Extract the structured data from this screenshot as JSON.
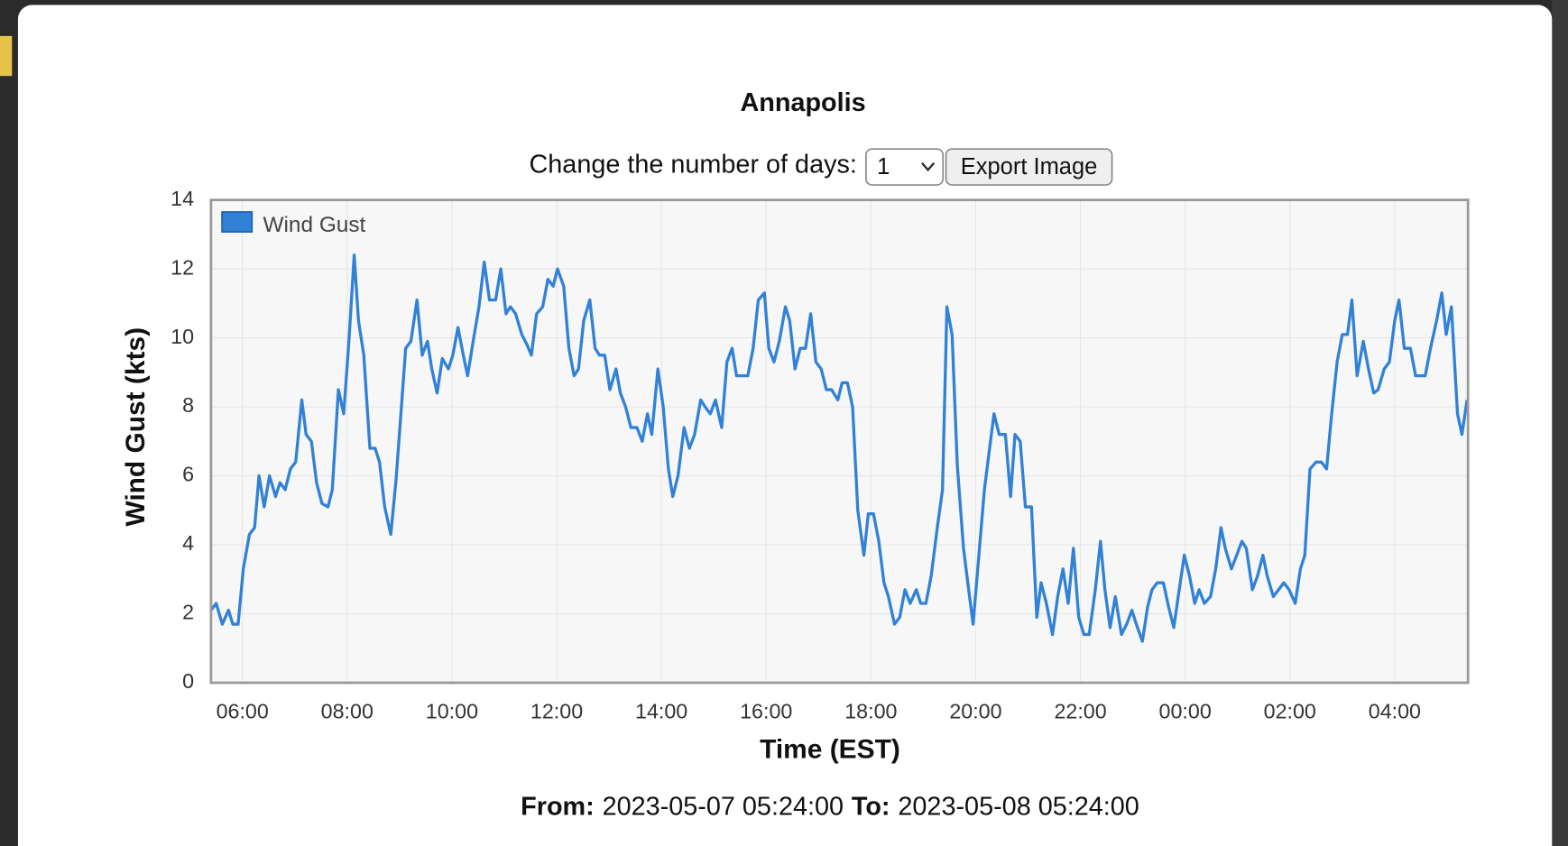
{
  "chart_data": {
    "type": "line",
    "title": "Annapolis",
    "xlabel": "Time (EST)",
    "ylabel": "Wind Gust (kts)",
    "x": [
      "05:24",
      "05:30",
      "05:37",
      "05:44",
      "05:49",
      "05:55",
      "06:01",
      "06:08",
      "06:14",
      "06:19",
      "06:25",
      "06:31",
      "06:38",
      "06:43",
      "06:49",
      "06:55",
      "07:01",
      "07:08",
      "07:13",
      "07:19",
      "07:25",
      "07:31",
      "07:38",
      "07:43",
      "07:50",
      "07:56",
      "08:02",
      "08:08",
      "08:13",
      "08:19",
      "08:26",
      "08:32",
      "08:37",
      "08:43",
      "08:50",
      "08:56",
      "09:01",
      "09:07",
      "09:13",
      "09:20",
      "09:26",
      "09:32",
      "09:37",
      "09:43",
      "09:49",
      "09:56",
      "10:01",
      "10:07",
      "10:13",
      "10:18",
      "10:25",
      "10:31",
      "10:37",
      "10:43",
      "10:50",
      "10:56",
      "11:02",
      "11:07",
      "11:13",
      "11:20",
      "11:26",
      "11:31",
      "11:37",
      "11:44",
      "11:50",
      "11:56",
      "12:01",
      "12:08",
      "12:14",
      "12:20",
      "12:25",
      "12:31",
      "12:38",
      "12:44",
      "12:49",
      "12:55",
      "13:01",
      "13:08",
      "13:13",
      "13:19",
      "13:25",
      "13:32",
      "13:38",
      "13:44",
      "13:49",
      "13:56",
      "14:02",
      "14:08",
      "14:13",
      "14:19",
      "14:26",
      "14:32",
      "14:38",
      "14:45",
      "14:50",
      "14:56",
      "15:02",
      "15:09",
      "15:15",
      "15:21",
      "15:26",
      "15:33",
      "15:39",
      "15:45",
      "15:51",
      "15:58",
      "16:03",
      "16:09",
      "16:15",
      "16:22",
      "16:27",
      "16:33",
      "16:39",
      "16:45",
      "16:51",
      "16:57",
      "17:03",
      "17:09",
      "17:15",
      "17:22",
      "17:27",
      "17:33",
      "17:39",
      "17:45",
      "17:52",
      "17:57",
      "18:03",
      "18:09",
      "18:15",
      "18:20",
      "18:27",
      "18:33",
      "18:39",
      "18:45",
      "18:52",
      "18:57",
      "19:03",
      "19:09",
      "19:16",
      "19:22",
      "19:27",
      "19:33",
      "19:39",
      "19:46",
      "19:51",
      "19:57",
      "20:03",
      "20:10",
      "20:16",
      "20:21",
      "20:27",
      "20:34",
      "20:40",
      "20:45",
      "20:51",
      "20:57",
      "21:04",
      "21:10",
      "21:15",
      "21:21",
      "21:28",
      "21:34",
      "21:40",
      "21:46",
      "21:52",
      "21:58",
      "22:04",
      "22:10",
      "22:17",
      "22:23",
      "22:28",
      "22:34",
      "22:40",
      "22:47",
      "22:53",
      "22:59",
      "23:04",
      "23:11",
      "23:17",
      "23:22",
      "23:28",
      "23:35",
      "23:41",
      "23:47",
      "23:52",
      "23:59",
      "00:05",
      "00:11",
      "00:16",
      "00:22",
      "00:29",
      "00:35",
      "00:41",
      "00:46",
      "00:53",
      "00:59",
      "01:05",
      "01:10",
      "01:17",
      "01:23",
      "01:29",
      "01:34",
      "01:41",
      "01:47",
      "01:53",
      "01:59",
      "02:06",
      "02:12",
      "02:17",
      "02:23",
      "02:30",
      "02:36",
      "02:42",
      "02:47",
      "02:54",
      "03:00",
      "03:06",
      "03:11",
      "03:17",
      "03:24",
      "03:30",
      "03:36",
      "03:41",
      "03:48",
      "03:54",
      "04:00",
      "04:05",
      "04:11",
      "04:18",
      "04:24",
      "04:30",
      "04:35",
      "04:41",
      "04:48",
      "04:54",
      "04:59",
      "05:05",
      "05:12",
      "05:17",
      "05:23"
    ],
    "series": [
      {
        "name": "Wind Gust",
        "color": "#3182d6",
        "values": [
          2.1,
          2.3,
          1.7,
          2.1,
          1.7,
          1.7,
          3.3,
          4.3,
          4.5,
          6.0,
          5.1,
          6.0,
          5.4,
          5.8,
          5.6,
          6.2,
          6.4,
          8.2,
          7.2,
          7.0,
          5.8,
          5.2,
          5.1,
          5.6,
          8.5,
          7.8,
          9.9,
          12.4,
          10.5,
          9.5,
          6.8,
          6.8,
          6.4,
          5.1,
          4.3,
          5.9,
          7.6,
          9.7,
          9.9,
          11.1,
          9.5,
          9.9,
          9.1,
          8.4,
          9.4,
          9.1,
          9.5,
          10.3,
          9.5,
          8.9,
          10.0,
          10.9,
          12.2,
          11.1,
          11.1,
          12.0,
          10.7,
          10.9,
          10.7,
          10.1,
          9.8,
          9.5,
          10.7,
          10.9,
          11.7,
          11.5,
          12.0,
          11.5,
          9.7,
          8.9,
          9.1,
          10.5,
          11.1,
          9.7,
          9.5,
          9.5,
          8.5,
          9.1,
          8.4,
          8.0,
          7.4,
          7.4,
          7.0,
          7.8,
          7.2,
          9.1,
          8.0,
          6.2,
          5.4,
          6.0,
          7.4,
          6.8,
          7.2,
          8.2,
          8.0,
          7.8,
          8.2,
          7.4,
          9.3,
          9.7,
          8.9,
          8.9,
          8.9,
          9.7,
          11.1,
          11.3,
          9.7,
          9.3,
          9.9,
          10.9,
          10.5,
          9.1,
          9.7,
          9.7,
          10.7,
          9.3,
          9.1,
          8.5,
          8.5,
          8.2,
          8.7,
          8.7,
          8.0,
          5.0,
          3.7,
          4.9,
          4.9,
          4.1,
          2.9,
          2.5,
          1.7,
          1.9,
          2.7,
          2.3,
          2.7,
          2.3,
          2.3,
          3.1,
          4.5,
          5.6,
          10.9,
          10.1,
          6.3,
          3.9,
          2.9,
          1.7,
          3.5,
          5.6,
          6.8,
          7.8,
          7.2,
          7.2,
          5.4,
          7.2,
          7.0,
          5.1,
          5.1,
          1.9,
          2.9,
          2.3,
          1.4,
          2.5,
          3.3,
          2.3,
          3.9,
          1.9,
          1.4,
          1.4,
          2.7,
          4.1,
          2.7,
          1.6,
          2.5,
          1.4,
          1.7,
          2.1,
          1.7,
          1.2,
          2.2,
          2.7,
          2.9,
          2.9,
          2.2,
          1.6,
          2.5,
          3.7,
          3.1,
          2.3,
          2.7,
          2.3,
          2.5,
          3.3,
          4.5,
          3.9,
          3.3,
          3.7,
          4.1,
          3.9,
          2.7,
          3.1,
          3.7,
          3.1,
          2.5,
          2.7,
          2.9,
          2.7,
          2.3,
          3.3,
          3.7,
          6.2,
          6.4,
          6.4,
          6.2,
          7.6,
          9.3,
          10.1,
          10.1,
          11.1,
          8.9,
          9.9,
          9.1,
          8.4,
          8.5,
          9.1,
          9.3,
          10.5,
          11.1,
          9.7,
          9.7,
          8.9,
          8.9,
          8.9,
          9.7,
          10.5,
          11.3,
          10.1,
          10.9,
          7.8,
          7.2,
          8.2
        ]
      }
    ],
    "xlim": [
      "05:24",
      "05:24"
    ],
    "xticks": [
      "06:00",
      "08:00",
      "10:00",
      "12:00",
      "14:00",
      "16:00",
      "18:00",
      "20:00",
      "22:00",
      "00:00",
      "02:00",
      "04:00"
    ],
    "ylim": [
      0,
      14
    ],
    "yticks": [
      0,
      2,
      4,
      6,
      8,
      10,
      12,
      14
    ],
    "grid": true,
    "legend": "upper left"
  },
  "controls": {
    "days_label": "Change the number of days:",
    "days_value": "1",
    "export_button": "Export Image"
  },
  "footer": {
    "from_label": "From:",
    "from_value": "2023-05-07 05:24:00",
    "to_label": "To:",
    "to_value": "2023-05-08 05:24:00"
  }
}
